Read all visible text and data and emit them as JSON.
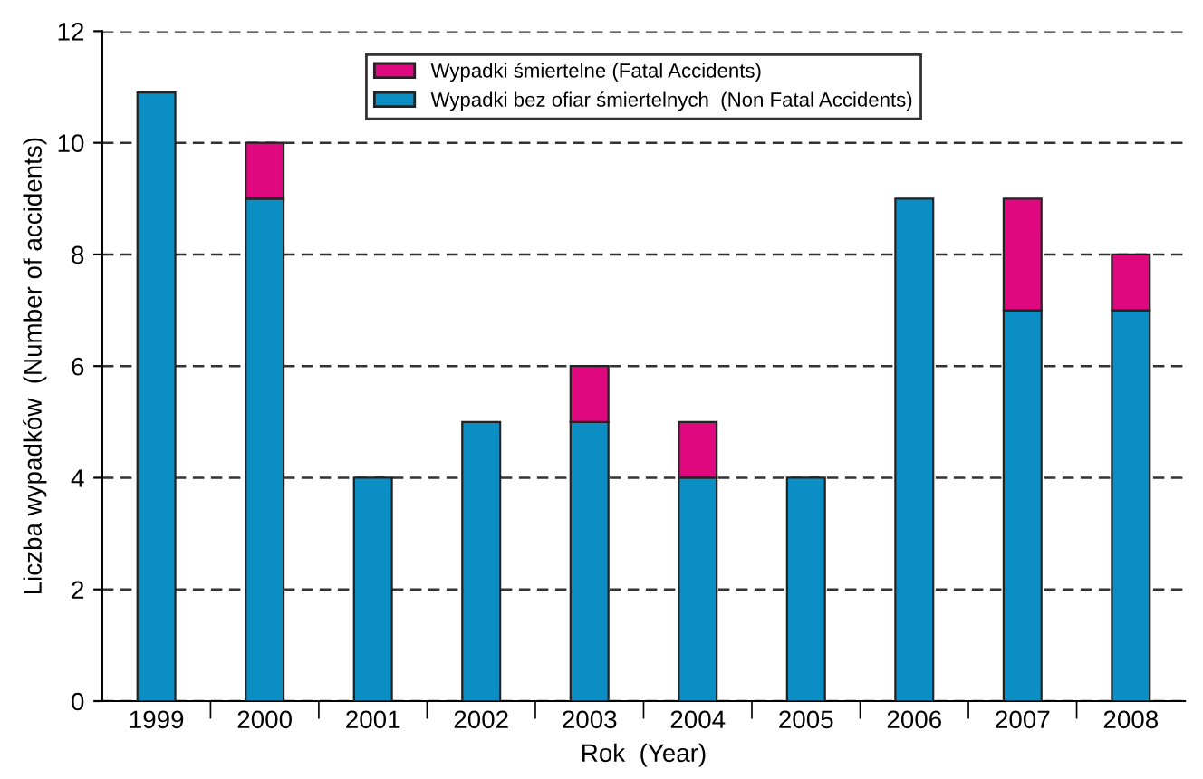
{
  "chart_data": {
    "type": "bar",
    "stacked": true,
    "xlabel": "Rok  (Year)",
    "ylabel": "Liczba wypadków  (Number of accidents)",
    "categories": [
      "1999",
      "2000",
      "2001",
      "2002",
      "2003",
      "2004",
      "2005",
      "2006",
      "2007",
      "2008"
    ],
    "series": [
      {
        "name": "Wypadki bez ofiar śmiertelnych  (Non Fatal Accidents)",
        "color": "#0a8ec4",
        "values": [
          10.9,
          9,
          4,
          5,
          5,
          4,
          4,
          9,
          7,
          7
        ]
      },
      {
        "name": "Wypadki śmiertelne (Fatal Accidents)",
        "color": "#e0087f",
        "values": [
          0,
          1,
          0,
          0,
          1,
          1,
          0,
          0,
          2,
          1
        ]
      }
    ],
    "ylim": [
      0,
      12
    ],
    "yticks": [
      0,
      2,
      4,
      6,
      8,
      10,
      12
    ],
    "grid": "y",
    "legend": "top"
  }
}
